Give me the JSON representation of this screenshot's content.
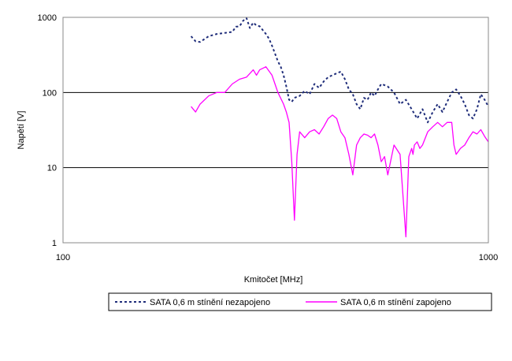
{
  "chart_data": {
    "type": "line",
    "title": "",
    "xlabel": "Kmitočet [MHz]",
    "ylabel": "Napětí [V]",
    "xscale": "log",
    "yscale": "log",
    "xlim": [
      100,
      1000
    ],
    "ylim": [
      1,
      1000
    ],
    "xticks": [
      "100",
      "1000"
    ],
    "yticks": [
      "1",
      "10",
      "100",
      "1000"
    ],
    "grid": "horizontal",
    "legend_position": "bottom",
    "series": [
      {
        "name": "SATA 0,6 m stínění nezapojeno",
        "color": "#1f2d7a",
        "style": "dashed",
        "x": [
          200,
          205,
          210,
          220,
          230,
          240,
          250,
          255,
          260,
          265,
          270,
          275,
          280,
          285,
          290,
          300,
          305,
          310,
          315,
          320,
          325,
          330,
          335,
          340,
          345,
          350,
          360,
          370,
          380,
          390,
          400,
          410,
          420,
          430,
          440,
          450,
          460,
          470,
          480,
          490,
          500,
          510,
          520,
          530,
          540,
          550,
          560,
          570,
          580,
          600,
          620,
          640,
          660,
          680,
          700,
          720,
          740,
          760,
          780,
          800,
          820,
          840,
          860,
          880,
          900,
          920,
          940,
          960,
          980,
          1000
        ],
        "y": [
          560,
          480,
          470,
          560,
          600,
          620,
          640,
          750,
          760,
          900,
          980,
          720,
          850,
          780,
          760,
          600,
          520,
          420,
          330,
          260,
          220,
          170,
          120,
          80,
          75,
          85,
          90,
          105,
          95,
          130,
          115,
          140,
          160,
          170,
          180,
          190,
          150,
          110,
          95,
          70,
          60,
          85,
          80,
          100,
          90,
          110,
          130,
          125,
          120,
          100,
          70,
          80,
          60,
          45,
          60,
          40,
          55,
          70,
          55,
          75,
          100,
          110,
          90,
          70,
          50,
          45,
          60,
          95,
          80,
          65
        ]
      },
      {
        "name": "SATA 0,6 m stínění zapojeno",
        "color": "#ff00ff",
        "style": "solid",
        "x": [
          200,
          205,
          210,
          220,
          230,
          240,
          250,
          260,
          270,
          280,
          285,
          290,
          300,
          310,
          315,
          320,
          330,
          335,
          340,
          345,
          350,
          355,
          360,
          370,
          380,
          390,
          400,
          410,
          420,
          430,
          440,
          450,
          460,
          470,
          480,
          490,
          500,
          510,
          520,
          530,
          540,
          550,
          560,
          570,
          580,
          600,
          620,
          640,
          650,
          660,
          665,
          670,
          680,
          690,
          700,
          720,
          740,
          760,
          780,
          800,
          820,
          830,
          840,
          860,
          880,
          900,
          920,
          940,
          960,
          980,
          1000
        ],
        "y": [
          65,
          55,
          70,
          90,
          100,
          100,
          130,
          150,
          160,
          200,
          170,
          200,
          220,
          170,
          130,
          100,
          70,
          55,
          40,
          12,
          2,
          15,
          30,
          25,
          30,
          32,
          28,
          35,
          45,
          50,
          45,
          30,
          25,
          15,
          8,
          20,
          25,
          28,
          27,
          25,
          28,
          20,
          12,
          14,
          8,
          20,
          15,
          1.2,
          14,
          18,
          15,
          20,
          22,
          18,
          20,
          30,
          35,
          40,
          35,
          40,
          40,
          20,
          15,
          18,
          20,
          25,
          30,
          28,
          32,
          26,
          22
        ]
      }
    ]
  }
}
